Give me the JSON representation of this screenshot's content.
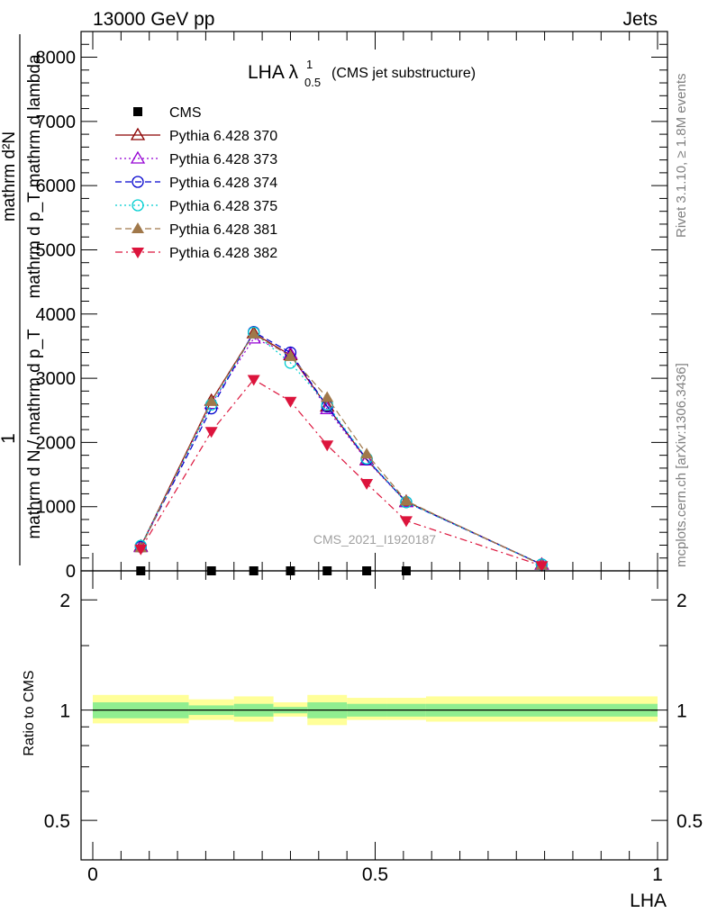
{
  "header": {
    "left": "13000 GeV pp",
    "right": "Jets"
  },
  "side_text": {
    "rivet": "Rivet 3.1.10, ≥ 1.8M events",
    "mcplots": "mcplots.cern.ch [arXiv:1306.3436]"
  },
  "watermark": "CMS_2021_I1920187",
  "chart_data": [
    {
      "type": "line",
      "title": "LHA λ",
      "title_sup": "1",
      "title_sub": "0.5",
      "title_suffix": "(CMS jet substructure)",
      "ylabel_top": "mathrm d²N",
      "ylabel_bottom": "mathrm d p_T mathrm d lambda",
      "ylabel_outer_num": "1",
      "ylabel_outer_den": "mathrm d N / mathrm d p_T",
      "xlim": [
        0,
        1
      ],
      "ylim": [
        0,
        8400
      ],
      "yticks": [
        0,
        1000,
        2000,
        3000,
        4000,
        5000,
        6000,
        7000,
        8000
      ],
      "ytick_labels": [
        "0",
        "1000",
        "2000",
        "3000",
        "4000",
        "5000",
        "6000",
        "7000",
        "8000"
      ],
      "legend_position": "top-left",
      "x": [
        0.085,
        0.21,
        0.285,
        0.35,
        0.415,
        0.485,
        0.555,
        0.795
      ],
      "series": [
        {
          "name": "CMS",
          "color": "#000000",
          "marker": "square",
          "dash": "none",
          "values": [
            0,
            0,
            0,
            0,
            0,
            0,
            0,
            null
          ]
        },
        {
          "name": "Pythia 6.428 370",
          "color": "#8b0000",
          "marker": "triangle-up-open",
          "dash": "solid",
          "values": [
            380,
            2650,
            3700,
            3360,
            2560,
            1730,
            1080,
            100
          ]
        },
        {
          "name": "Pythia 6.428 373",
          "color": "#9400d3",
          "marker": "triangle-up-open",
          "dash": "dotted",
          "values": [
            370,
            2600,
            3620,
            3380,
            2520,
            1720,
            1070,
            95
          ]
        },
        {
          "name": "Pythia 6.428 374",
          "color": "#0000cd",
          "marker": "circle-open",
          "dash": "dashed",
          "values": [
            375,
            2530,
            3720,
            3400,
            2560,
            1740,
            1070,
            100
          ]
        },
        {
          "name": "Pythia 6.428 375",
          "color": "#00ced1",
          "marker": "circle-open",
          "dash": "dotted",
          "values": [
            390,
            2590,
            3710,
            3240,
            2590,
            1750,
            1070,
            100
          ]
        },
        {
          "name": "Pythia 6.428 381",
          "color": "#a0784a",
          "marker": "triangle-up-filled",
          "dash": "dashed",
          "values": [
            360,
            2640,
            3690,
            3340,
            2700,
            1820,
            1090,
            90
          ]
        },
        {
          "name": "Pythia 6.428 382",
          "color": "#dc143c",
          "marker": "triangle-down-filled",
          "dash": "dashdot",
          "values": [
            340,
            2170,
            2980,
            2640,
            1960,
            1360,
            780,
            80
          ]
        }
      ]
    },
    {
      "type": "area",
      "ylabel": "Ratio to CMS",
      "xlabel": "LHA",
      "xlim": [
        0,
        1
      ],
      "ylim": [
        0.39,
        2.4
      ],
      "log_y": true,
      "xtick_labels": [
        "0",
        "0.5",
        "1"
      ],
      "ytick_labels": [
        "0.5",
        "1",
        "2"
      ],
      "ytick_values": [
        0.5,
        1,
        2
      ],
      "bin_edges": [
        0,
        0.17,
        0.25,
        0.32,
        0.38,
        0.45,
        0.52,
        0.59,
        1.0
      ],
      "band_inner": [
        [
          0.95,
          1.05
        ],
        [
          0.97,
          1.03
        ],
        [
          0.96,
          1.04
        ],
        [
          0.98,
          1.02
        ],
        [
          0.95,
          1.05
        ],
        [
          0.96,
          1.04
        ],
        [
          0.96,
          1.04
        ],
        [
          0.96,
          1.04
        ]
      ],
      "band_outer": [
        [
          0.92,
          1.1
        ],
        [
          0.94,
          1.07
        ],
        [
          0.93,
          1.09
        ],
        [
          0.96,
          1.05
        ],
        [
          0.91,
          1.1
        ],
        [
          0.94,
          1.08
        ],
        [
          0.94,
          1.08
        ],
        [
          0.93,
          1.09
        ]
      ],
      "reference_line": 1,
      "band_colors": {
        "inner": "#90ee90",
        "outer": "#ffff99"
      }
    }
  ]
}
